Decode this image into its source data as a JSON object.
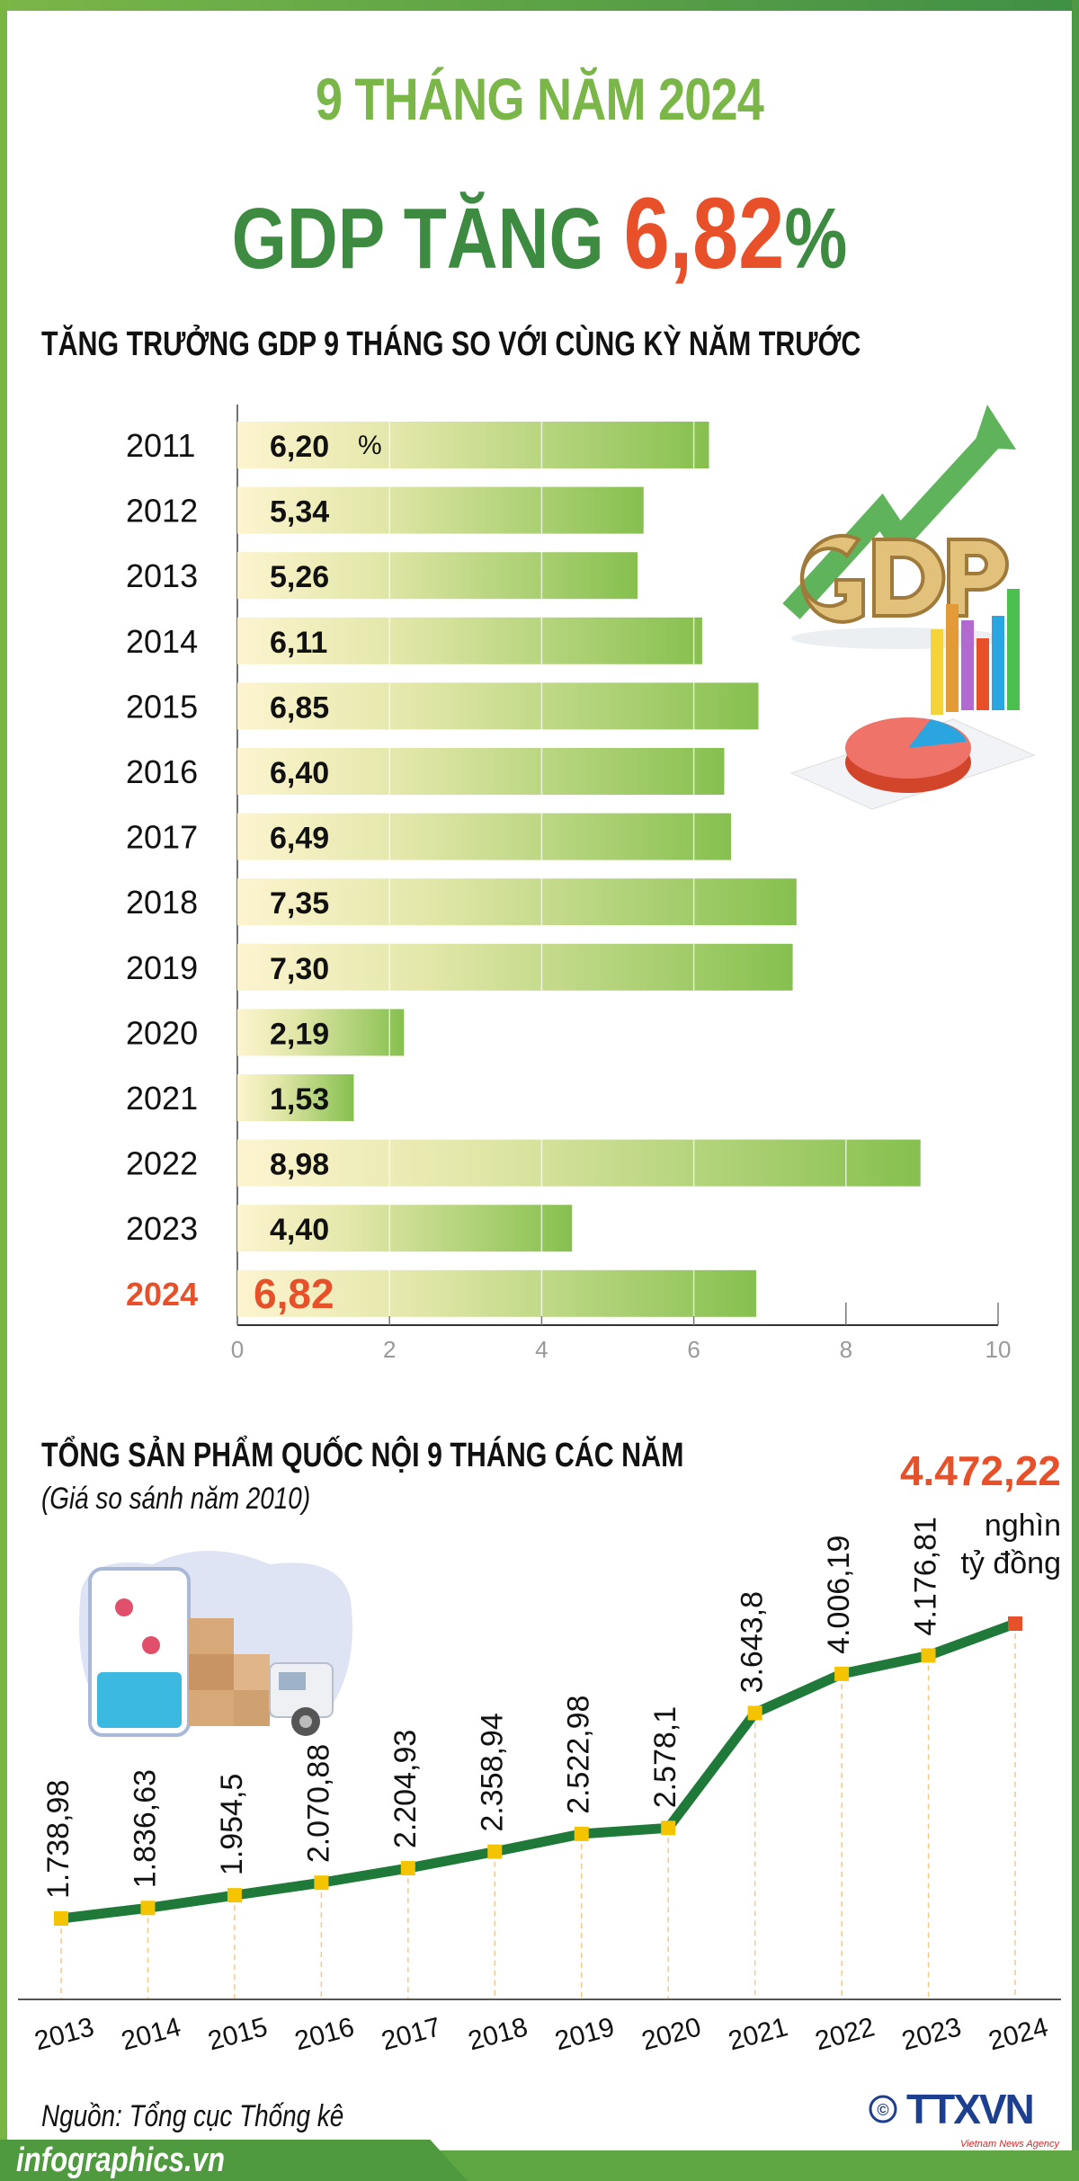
{
  "header": {
    "title_line1": "9 THÁNG NĂM 2024",
    "title_line2_prefix": "GDP TĂNG",
    "title_line2_value": "6,82",
    "title_line2_suffix": "%"
  },
  "colors": {
    "light_green": "#7ab648",
    "dark_green": "#3d8b41",
    "highlight_orange": "#e8502a",
    "line_green": "#1f7a3a",
    "marker_yellow": "#f5c400"
  },
  "chart_data": [
    {
      "type": "bar",
      "orientation": "horizontal",
      "title": "TĂNG TRƯỞNG GDP 9 THÁNG SO VỚI CÙNG KỲ NĂM TRƯỚC",
      "unit_label": "%",
      "categories": [
        "2011",
        "2012",
        "2013",
        "2014",
        "2015",
        "2016",
        "2017",
        "2018",
        "2019",
        "2020",
        "2021",
        "2022",
        "2023",
        "2024"
      ],
      "values": [
        6.2,
        5.34,
        5.26,
        6.11,
        6.85,
        6.4,
        6.49,
        7.35,
        7.3,
        2.19,
        1.53,
        8.98,
        4.4,
        6.82
      ],
      "value_labels": [
        "6,20",
        "5,34",
        "5,26",
        "6,11",
        "6,85",
        "6,40",
        "6,49",
        "7,35",
        "7,30",
        "2,19",
        "1,53",
        "8,98",
        "4,40",
        "6,82"
      ],
      "highlight_category": "2024",
      "xlim": [
        0,
        10
      ],
      "xticks": [
        "0",
        "2",
        "4",
        "6",
        "8",
        "10"
      ],
      "grid": true
    },
    {
      "type": "line",
      "title": "TỔNG SẢN PHẨM QUỐC NỘI 9 THÁNG CÁC NĂM",
      "subtitle": "(Giá so sánh năm 2010)",
      "x": [
        "2013",
        "2014",
        "2015",
        "2016",
        "2017",
        "2018",
        "2019",
        "2020",
        "2021",
        "2022",
        "2023",
        "2024"
      ],
      "values": [
        1738.98,
        1836.63,
        1954.5,
        2070.88,
        2204.93,
        2358.94,
        2522.98,
        2578.1,
        3643.8,
        4006.19,
        4176.81,
        4472.22
      ],
      "value_labels": [
        "1.738,98",
        "1.836,63",
        "1.954,5",
        "2.070,88",
        "2.204,93",
        "2.358,94",
        "2.522,98",
        "2.578,1",
        "3.643,8",
        "4.006,19",
        "4.176,81",
        "4.472,22"
      ],
      "unit_line1": "nghìn",
      "unit_line2": "tỷ đồng",
      "highlight_x": "2024"
    }
  ],
  "footer": {
    "source": "Nguồn:  Tổng cục Thống kê",
    "site": "infographics.vn",
    "logo_text": "TTXVN",
    "logo_sub": "Vietnam News Agency",
    "copyright": "©"
  }
}
